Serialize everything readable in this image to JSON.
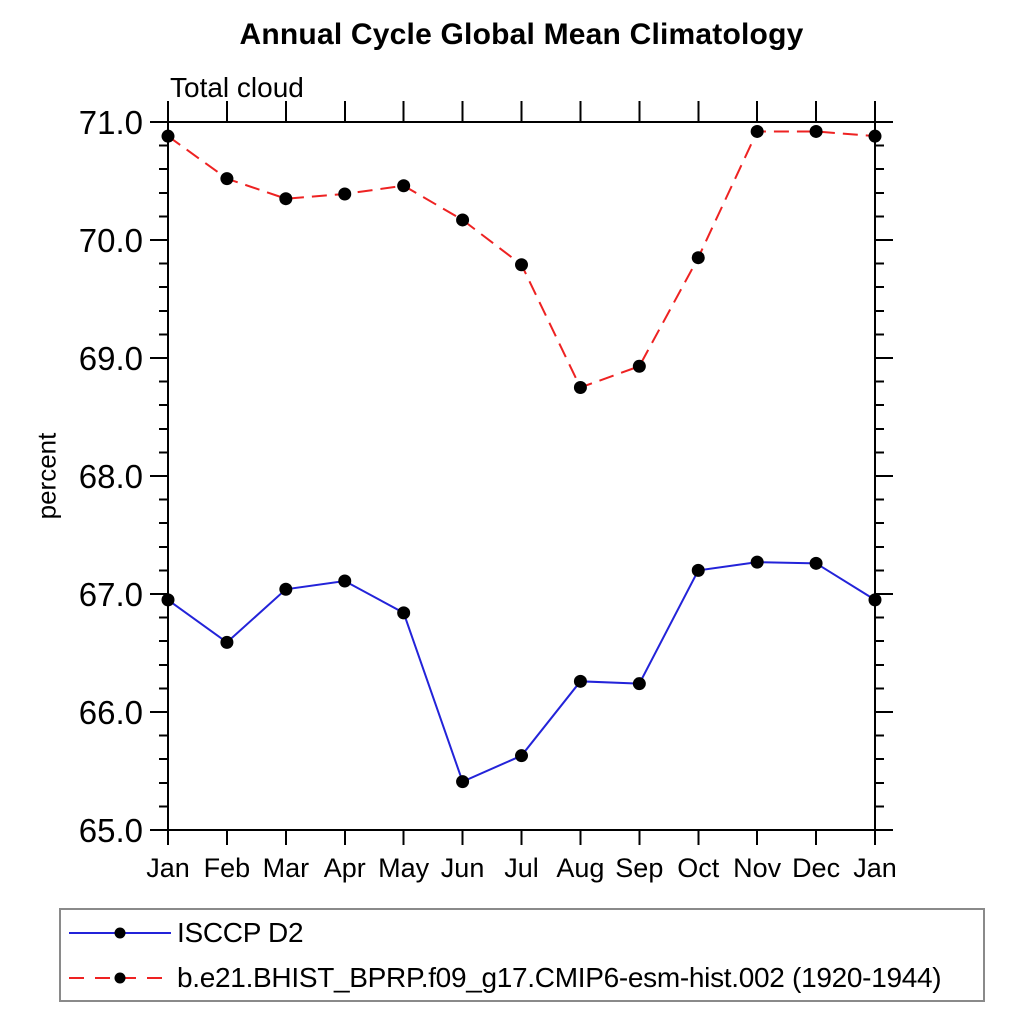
{
  "chart_data": {
    "type": "line",
    "title": "Annual Cycle Global Mean Climatology",
    "subtitle": "Total cloud",
    "ylabel": "percent",
    "xlabel": "",
    "categories": [
      "Jan",
      "Feb",
      "Mar",
      "Apr",
      "May",
      "Jun",
      "Jul",
      "Aug",
      "Sep",
      "Oct",
      "Nov",
      "Dec",
      "Jan"
    ],
    "series": [
      {
        "name": "ISCCP D2",
        "color": "#2323d9",
        "line_style": "solid",
        "marker": "filled-circle",
        "marker_color": "#000000",
        "values": [
          66.95,
          66.59,
          67.04,
          67.11,
          66.84,
          65.41,
          65.63,
          66.26,
          66.24,
          67.2,
          67.27,
          67.26,
          66.95
        ]
      },
      {
        "name": "b.e21.BHIST_BPRP.f09_g17.CMIP6-esm-hist.002 (1920-1944)",
        "color": "#ee2222",
        "line_style": "dashed",
        "marker": "filled-circle",
        "marker_color": "#000000",
        "values": [
          70.88,
          70.52,
          70.35,
          70.39,
          70.46,
          70.17,
          69.79,
          68.75,
          68.93,
          69.85,
          70.92,
          70.92,
          70.88
        ]
      }
    ],
    "ylim": [
      65.0,
      71.0
    ],
    "yticks": [
      65.0,
      66.0,
      67.0,
      68.0,
      69.0,
      70.0,
      71.0
    ],
    "ytick_labels": [
      "65.0",
      "66.0",
      "67.0",
      "68.0",
      "69.0",
      "70.0",
      "71.0"
    ],
    "minor_tick_interval": 0.2,
    "grid": false,
    "ticks": "outward-all-four-sides",
    "legend_position": "bottom-left"
  },
  "legend": {
    "items": [
      {
        "label": "ISCCP D2",
        "color": "#2323d9",
        "line_style": "solid"
      },
      {
        "label": "b.e21.BHIST_BPRP.f09_g17.CMIP6-esm-hist.002 (1920-1944)",
        "color": "#ee2222",
        "line_style": "dashed"
      }
    ],
    "border_color": "#8a8a8a"
  },
  "colors": {
    "background": "#ffffff",
    "axis": "#000000",
    "marker": "#000000",
    "series_blue": "#2323d9",
    "series_red": "#ee2222"
  }
}
